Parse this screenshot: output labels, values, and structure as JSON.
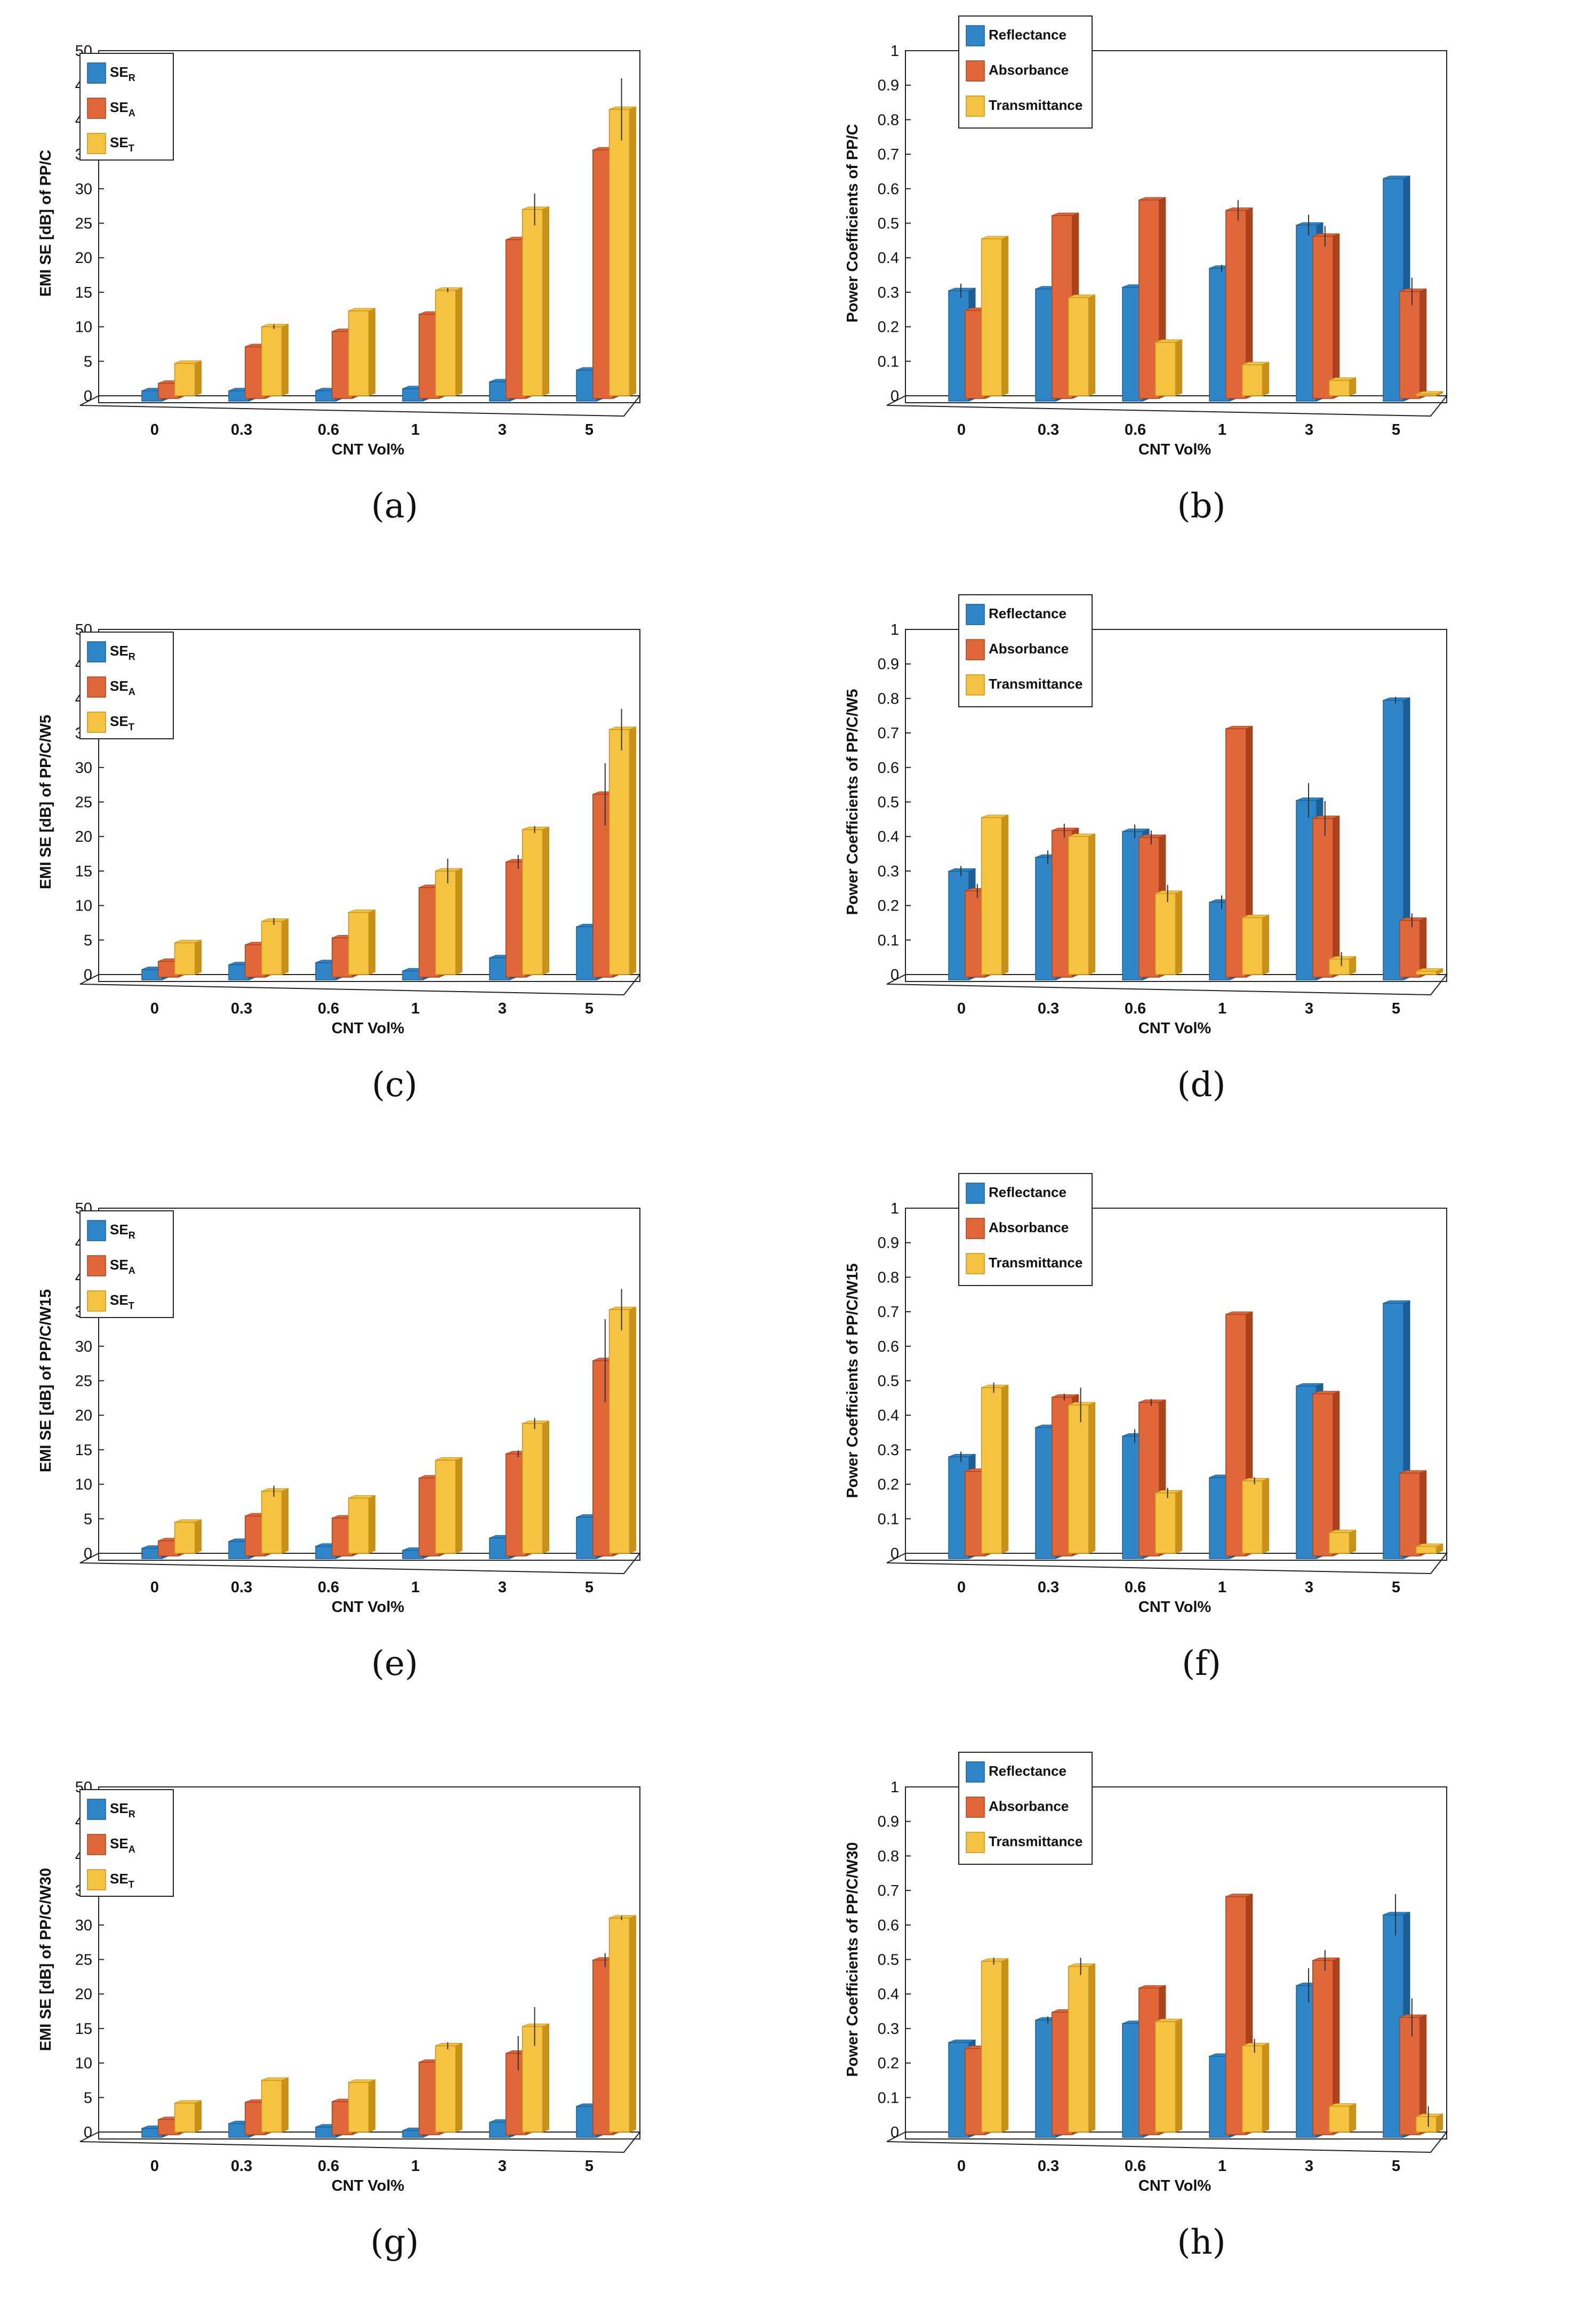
{
  "colors": {
    "reflect": "#2e86c9",
    "absorb": "#e0673a",
    "transmit": "#f5c342",
    "errbar": "#333333"
  },
  "chart_data": [
    {
      "id": "a",
      "caption": "(a)",
      "type": "bar",
      "kind": "se",
      "ylabel": "EMI SE [dB] of PP/C",
      "xlabel": "CNT Vol%",
      "ylim": [
        0,
        50
      ],
      "yticks": [
        "0",
        "5",
        "10",
        "15",
        "20",
        "25",
        "30",
        "35",
        "40",
        "45",
        "50"
      ],
      "categories": [
        "0",
        "0.3",
        "0.6",
        "1",
        "3",
        "5"
      ],
      "legend": [
        {
          "base": "SE",
          "sub": "R"
        },
        {
          "base": "SE",
          "sub": "A"
        },
        {
          "base": "SE",
          "sub": "T"
        }
      ],
      "series": [
        {
          "values": [
            1.5,
            1.5,
            1.5,
            1.8,
            2.8,
            4.5
          ],
          "errors": [
            0,
            0,
            0,
            0,
            0,
            0
          ]
        },
        {
          "values": [
            2.2,
            7.5,
            9.7,
            12.2,
            23,
            36
          ],
          "errors": [
            0,
            0,
            0,
            0,
            0,
            0
          ]
        },
        {
          "values": [
            4.7,
            10,
            12.3,
            15.3,
            27,
            41.5
          ],
          "errors": [
            0,
            0.3,
            0,
            0.3,
            2.3,
            4.5
          ]
        }
      ]
    },
    {
      "id": "b",
      "caption": "(b)",
      "type": "bar",
      "kind": "pc",
      "ylabel": "Power Coefficients of PP/C",
      "xlabel": "CNT Vol%",
      "ylim": [
        0,
        1
      ],
      "yticks": [
        "0",
        "0.1",
        "0.2",
        "0.3",
        "0.4",
        "0.5",
        "0.6",
        "0.7",
        "0.8",
        "0.9",
        "1"
      ],
      "categories": [
        "0",
        "0.3",
        "0.6",
        "1",
        "3",
        "5"
      ],
      "legend": [
        {
          "base": "Reflectance"
        },
        {
          "base": "Absorbance"
        },
        {
          "base": "Transmittance"
        }
      ],
      "series": [
        {
          "values": [
            0.32,
            0.325,
            0.33,
            0.385,
            0.51,
            0.645
          ],
          "errors": [
            0.02,
            0,
            0,
            0.01,
            0.03,
            0
          ]
        },
        {
          "values": [
            0.255,
            0.53,
            0.575,
            0.545,
            0.47,
            0.31
          ],
          "errors": [
            0,
            0,
            0,
            0.03,
            0.03,
            0.04
          ]
        },
        {
          "values": [
            0.455,
            0.285,
            0.155,
            0.09,
            0.045,
            0.005
          ],
          "errors": [
            0,
            0,
            0,
            0,
            0,
            0
          ]
        }
      ]
    },
    {
      "id": "c",
      "caption": "(c)",
      "type": "bar",
      "kind": "se",
      "ylabel": "EMI SE [dB] of PP/C/W5",
      "xlabel": "CNT Vol%",
      "ylim": [
        0,
        50
      ],
      "yticks": [
        "0",
        "5",
        "10",
        "15",
        "20",
        "25",
        "30",
        "35",
        "40",
        "45",
        "50"
      ],
      "categories": [
        "0",
        "0.3",
        "0.6",
        "1",
        "3",
        "5"
      ],
      "legend": [
        {
          "base": "SE",
          "sub": "R"
        },
        {
          "base": "SE",
          "sub": "A"
        },
        {
          "base": "SE",
          "sub": "T"
        }
      ],
      "series": [
        {
          "values": [
            1.5,
            2.2,
            2.5,
            1.3,
            3.2,
            7.7
          ],
          "errors": [
            0,
            0,
            0,
            0,
            0,
            0
          ]
        },
        {
          "values": [
            2.3,
            4.7,
            5.7,
            13,
            16.7,
            26.5
          ],
          "errors": [
            0,
            0,
            0,
            0,
            1,
            4.5
          ]
        },
        {
          "values": [
            4.6,
            7.7,
            9,
            15,
            21,
            35.5
          ],
          "errors": [
            0,
            0.5,
            0,
            1.8,
            0.5,
            3
          ]
        }
      ]
    },
    {
      "id": "d",
      "caption": "(d)",
      "type": "bar",
      "kind": "pc",
      "ylabel": "Power Coefficients of PP/C/W5",
      "xlabel": "CNT Vol%",
      "ylim": [
        0,
        1
      ],
      "yticks": [
        "0",
        "0.1",
        "0.2",
        "0.3",
        "0.4",
        "0.5",
        "0.6",
        "0.7",
        "0.8",
        "0.9",
        "1"
      ],
      "categories": [
        "0",
        "0.3",
        "0.6",
        "1",
        "3",
        "5"
      ],
      "legend": [
        {
          "base": "Reflectance"
        },
        {
          "base": "Absorbance"
        },
        {
          "base": "Transmittance"
        }
      ],
      "series": [
        {
          "values": [
            0.315,
            0.355,
            0.43,
            0.225,
            0.52,
            0.81
          ],
          "errors": [
            0.015,
            0.02,
            0.02,
            0.02,
            0.05,
            0.01
          ]
        },
        {
          "values": [
            0.25,
            0.425,
            0.405,
            0.72,
            0.46,
            0.165
          ],
          "errors": [
            0.02,
            0.02,
            0.02,
            0,
            0.05,
            0.02
          ]
        },
        {
          "values": [
            0.455,
            0.4,
            0.235,
            0.165,
            0.045,
            0.01
          ],
          "errors": [
            0,
            0,
            0.025,
            0,
            0.02,
            0
          ]
        }
      ]
    },
    {
      "id": "e",
      "caption": "(e)",
      "type": "bar",
      "kind": "se",
      "ylabel": "EMI SE [dB] of PP/C/W15",
      "xlabel": "CNT Vol%",
      "ylim": [
        0,
        50
      ],
      "yticks": [
        "0",
        "5",
        "10",
        "15",
        "20",
        "25",
        "30",
        "35",
        "40",
        "45",
        "50"
      ],
      "categories": [
        "0",
        "0.3",
        "0.6",
        "1",
        "3",
        "5"
      ],
      "legend": [
        {
          "base": "SE",
          "sub": "R"
        },
        {
          "base": "SE",
          "sub": "A"
        },
        {
          "base": "SE",
          "sub": "T"
        }
      ],
      "series": [
        {
          "values": [
            1.5,
            2.5,
            1.8,
            1.2,
            3,
            6
          ],
          "errors": [
            0,
            0,
            0,
            0,
            0,
            0
          ]
        },
        {
          "values": [
            2.2,
            5.8,
            5.5,
            11.3,
            14.8,
            28.3
          ],
          "errors": [
            0,
            0,
            0,
            0,
            0.5,
            6
          ]
        },
        {
          "values": [
            4.5,
            9,
            8,
            13.5,
            18.8,
            35.3
          ],
          "errors": [
            0,
            0.8,
            0,
            0,
            0.8,
            3
          ]
        }
      ]
    },
    {
      "id": "f",
      "caption": "(f)",
      "type": "bar",
      "kind": "pc",
      "ylabel": "Power Coefficients of PP/C/W15",
      "xlabel": "CNT Vol%",
      "ylim": [
        0,
        1
      ],
      "yticks": [
        "0",
        "0.1",
        "0.2",
        "0.3",
        "0.4",
        "0.5",
        "0.6",
        "0.7",
        "0.8",
        "0.9",
        "1"
      ],
      "categories": [
        "0",
        "0.3",
        "0.6",
        "1",
        "3",
        "5"
      ],
      "legend": [
        {
          "base": "Reflectance"
        },
        {
          "base": "Absorbance"
        },
        {
          "base": "Transmittance"
        }
      ],
      "series": [
        {
          "values": [
            0.295,
            0.38,
            0.355,
            0.235,
            0.5,
            0.74
          ],
          "errors": [
            0.015,
            0,
            0.02,
            0,
            0,
            0
          ]
        },
        {
          "values": [
            0.245,
            0.46,
            0.445,
            0.7,
            0.47,
            0.24
          ],
          "errors": [
            0,
            0.01,
            0.01,
            0,
            0,
            0
          ]
        },
        {
          "values": [
            0.48,
            0.43,
            0.175,
            0.21,
            0.06,
            0.02
          ],
          "errors": [
            0.015,
            0.05,
            0.015,
            0.01,
            0,
            0
          ]
        }
      ]
    },
    {
      "id": "g",
      "caption": "(g)",
      "type": "bar",
      "kind": "se",
      "ylabel": "EMI SE [dB] of PP/C/W30",
      "xlabel": "CNT Vol%",
      "ylim": [
        0,
        50
      ],
      "yticks": [
        "0",
        "5",
        "10",
        "15",
        "20",
        "25",
        "30",
        "35",
        "40",
        "45",
        "50"
      ],
      "categories": [
        "0",
        "0.3",
        "0.6",
        "1",
        "3",
        "5"
      ],
      "legend": [
        {
          "base": "SE",
          "sub": "R"
        },
        {
          "base": "SE",
          "sub": "A"
        },
        {
          "base": "SE",
          "sub": "T"
        }
      ],
      "series": [
        {
          "values": [
            1.3,
            2,
            1.5,
            1,
            2.2,
            4.5
          ],
          "errors": [
            0,
            0,
            0,
            0,
            0,
            0
          ]
        },
        {
          "values": [
            2.2,
            4.7,
            4.8,
            10.5,
            11.8,
            25.3
          ],
          "errors": [
            0,
            0,
            0,
            0,
            2.5,
            1
          ]
        },
        {
          "values": [
            4.2,
            7.5,
            7.2,
            12.5,
            15.3,
            31
          ],
          "errors": [
            0,
            0,
            0,
            0.5,
            2.8,
            0.3
          ]
        }
      ]
    },
    {
      "id": "h",
      "caption": "(h)",
      "type": "bar",
      "kind": "pc",
      "ylabel": "Power Coefficients of PP/C/W30",
      "xlabel": "CNT Vol%",
      "ylim": [
        0,
        1
      ],
      "yticks": [
        "0",
        "0.1",
        "0.2",
        "0.3",
        "0.4",
        "0.5",
        "0.6",
        "0.7",
        "0.8",
        "0.9",
        "1"
      ],
      "categories": [
        "0",
        "0.3",
        "0.6",
        "1",
        "3",
        "5"
      ],
      "legend": [
        {
          "base": "Reflectance"
        },
        {
          "base": "Absorbance"
        },
        {
          "base": "Transmittance"
        }
      ],
      "series": [
        {
          "values": [
            0.275,
            0.34,
            0.33,
            0.235,
            0.44,
            0.645
          ],
          "errors": [
            0,
            0.01,
            0,
            0,
            0.05,
            0.06
          ]
        },
        {
          "values": [
            0.25,
            0.355,
            0.425,
            0.69,
            0.505,
            0.34
          ],
          "errors": [
            0,
            0,
            0,
            0,
            0.03,
            0.055
          ]
        },
        {
          "values": [
            0.495,
            0.48,
            0.32,
            0.25,
            0.075,
            0.045
          ],
          "errors": [
            0.01,
            0.025,
            0,
            0.02,
            0,
            0.03
          ]
        }
      ]
    }
  ]
}
